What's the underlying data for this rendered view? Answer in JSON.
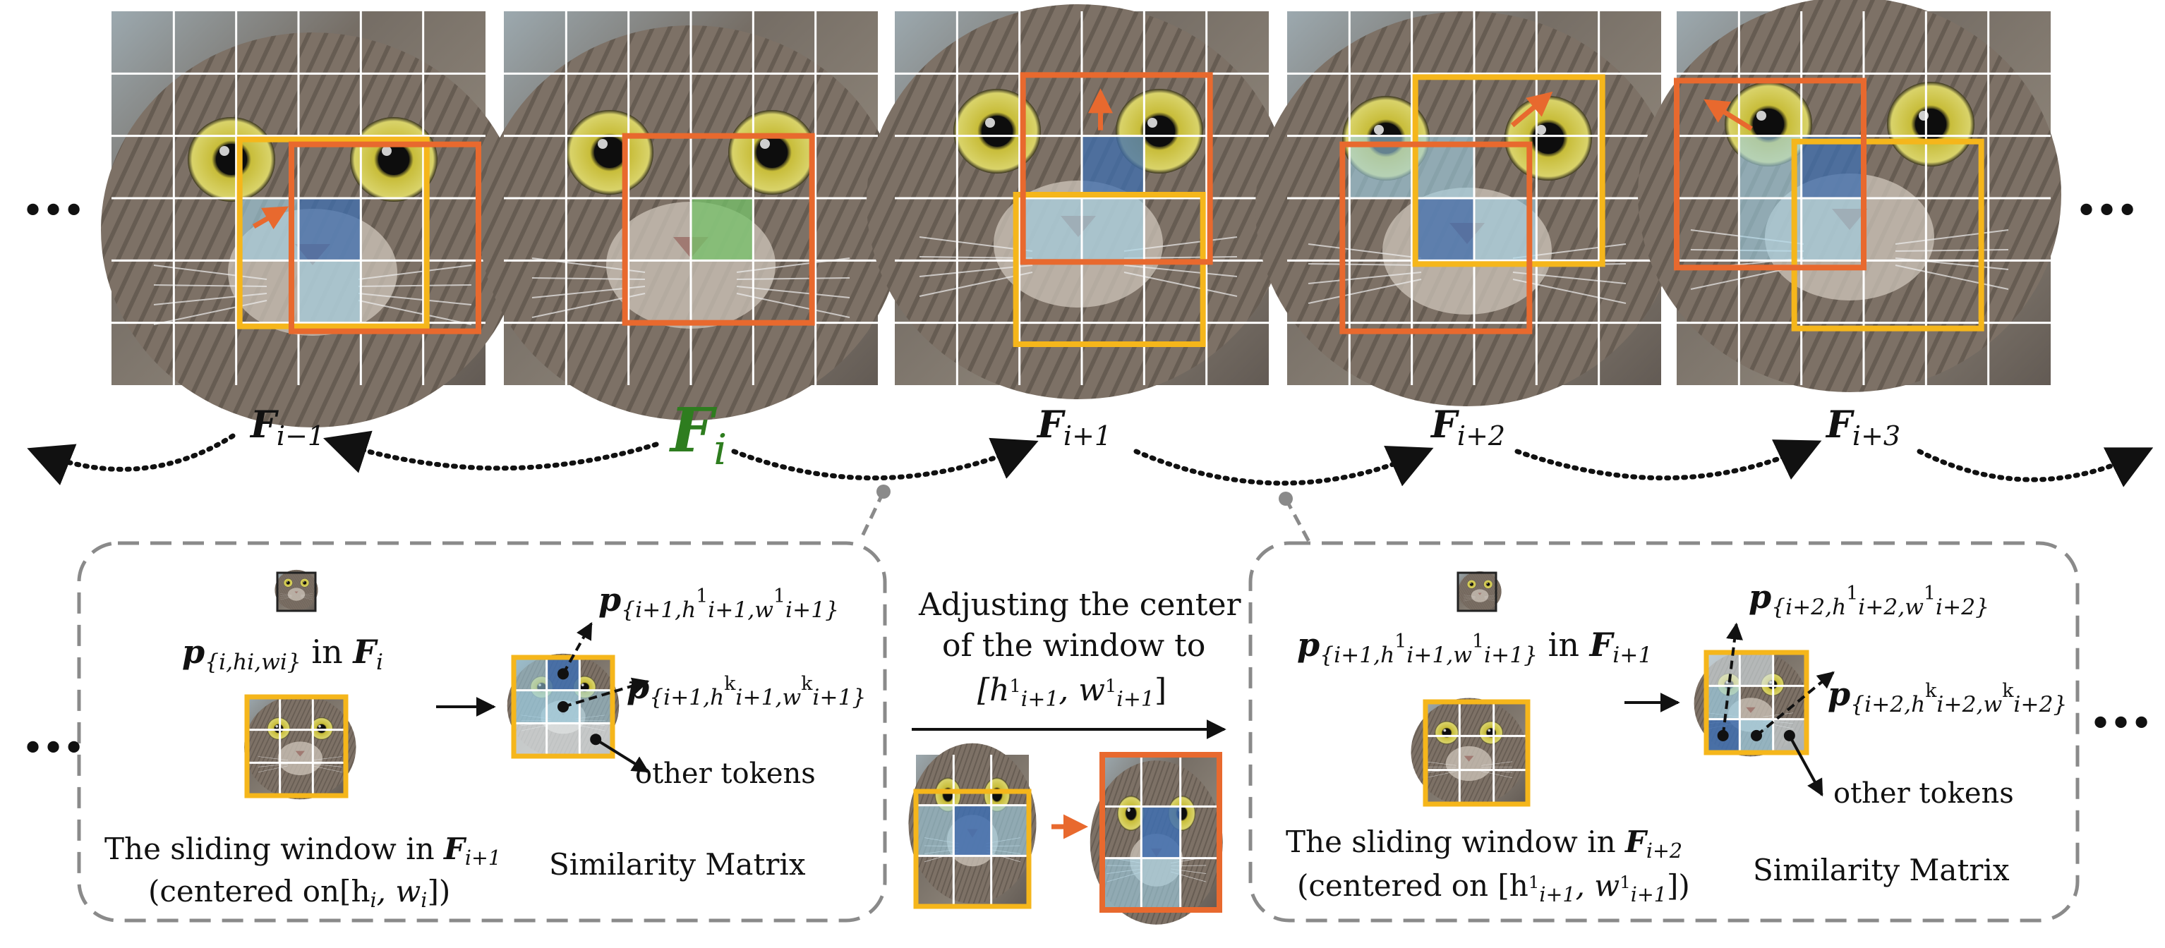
{
  "ellipsis": "•••",
  "frames": [
    {
      "id": "F_i-1",
      "base": "F",
      "sub": "i−1",
      "highlight": false
    },
    {
      "id": "F_i",
      "base": "F",
      "sub": "i",
      "highlight": true
    },
    {
      "id": "F_i+1",
      "base": "F",
      "sub": "i+1",
      "highlight": false
    },
    {
      "id": "F_i+2",
      "base": "F",
      "sub": "i+2",
      "highlight": false
    },
    {
      "id": "F_i+3",
      "base": "F",
      "sub": "i+3",
      "highlight": false
    }
  ],
  "colors": {
    "orange_box": "#e8692e",
    "yellow_box": "#f5b61b",
    "label_green": "#2e7d1f",
    "token_blue_dark": "#3f6fb0",
    "token_blue_light": "#9fd0e6",
    "token_green": "#76c26a",
    "dashed_border": "#8a8a8a",
    "arrow_orange": "#e8692e"
  },
  "left_panel": {
    "token_label": "p",
    "token_sub": "{i,h",
    "token_sub2": "i",
    "token_sub3": ",w",
    "token_sub4": "i",
    "token_sub5": "}",
    "in_text": " in ",
    "in_frame": "F",
    "in_frame_sub": "i",
    "window_caption_line1": "The sliding window in ",
    "window_caption_frame": "F",
    "window_caption_frame_sub": "i+1",
    "window_caption_line2": "(centered on[h",
    "window_caption_line2b": "i",
    "window_caption_line2c": ", w",
    "window_caption_line2d": "i",
    "window_caption_line2e": "])",
    "matrix_caption": "Similarity Matrix",
    "p_top": "p",
    "p_top_sub": "{i+1,h",
    "p_top_sup": "1",
    "p_top_sub2": "i+1",
    "p_top_sub3": ",w",
    "p_top_sup2": "1",
    "p_top_sub4": "i+1",
    "p_top_sub5": "}",
    "p_mid": "p",
    "p_mid_sub": "{i+1,h",
    "p_mid_sup": "k",
    "p_mid_sub2": "i+1",
    "p_mid_sub3": ",w",
    "p_mid_sup2": "k",
    "p_mid_sub4": "i+1",
    "p_mid_sub5": "}",
    "other_tokens": "other tokens"
  },
  "middle": {
    "line1": "Adjusting the center",
    "line2": "of the window to",
    "line3a": "[h",
    "line3sup": "1",
    "line3sub": "i+1",
    "line3b": ", w",
    "line3sup2": "1",
    "line3sub2": "i+1",
    "line3c": "]"
  },
  "right_panel": {
    "token_label": "p",
    "token_sub": "{i+1,h",
    "token_sup": "1",
    "token_sub2": "i+1",
    "token_sub3": ",w",
    "token_sup2": "1",
    "token_sub4": "i+1",
    "token_sub5": "}",
    "in_text": " in ",
    "in_frame": "F",
    "in_frame_sub": "i+1",
    "window_caption_line1": "The sliding window in ",
    "window_caption_frame": "F",
    "window_caption_frame_sub": "i+2",
    "window_caption_line2": "(centered on [h",
    "window_caption_line2sup": "1",
    "window_caption_line2sub": "i+1",
    "window_caption_line2b": ", w",
    "window_caption_line2sup2": "1",
    "window_caption_line2sub2": "i+1",
    "window_caption_line2c": "])",
    "matrix_caption": "Similarity Matrix",
    "p_top": "p",
    "p_top_sub": "{i+2,h",
    "p_top_sup": "1",
    "p_top_sub2": "i+2",
    "p_top_sub3": ",w",
    "p_top_sup2": "1",
    "p_top_sub4": "i+2",
    "p_top_sub5": "}",
    "p_mid": "p",
    "p_mid_sub": "{i+2,h",
    "p_mid_sup": "k",
    "p_mid_sub2": "i+2",
    "p_mid_sub3": ",w",
    "p_mid_sup2": "k",
    "p_mid_sub4": "i+2",
    "p_mid_sub5": "}",
    "other_tokens": "other tokens"
  }
}
